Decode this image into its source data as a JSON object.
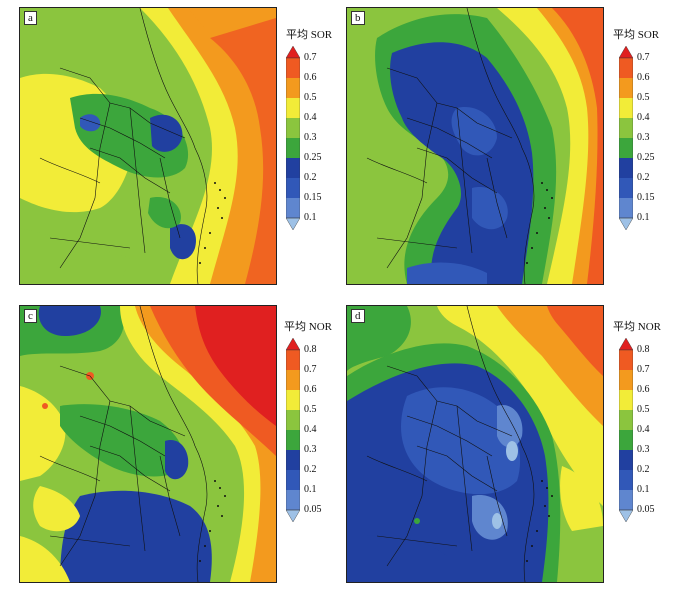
{
  "panels": [
    {
      "letter": "a",
      "colorbar_title": "平均 SOR",
      "ticks": [
        "0.7",
        "0.6",
        "0.5",
        "0.4",
        "0.3",
        "0.25",
        "0.2",
        "0.15",
        "0.1"
      ]
    },
    {
      "letter": "b",
      "colorbar_title": "平均 SOR",
      "ticks": [
        "0.7",
        "0.6",
        "0.5",
        "0.4",
        "0.3",
        "0.25",
        "0.2",
        "0.15",
        "0.1"
      ]
    },
    {
      "letter": "c",
      "colorbar_title": "平均 NOR",
      "ticks": [
        "0.8",
        "0.7",
        "0.6",
        "0.5",
        "0.4",
        "0.3",
        "0.2",
        "0.1",
        "0.05"
      ]
    },
    {
      "letter": "d",
      "colorbar_title": "平均 NOR",
      "ticks": [
        "0.8",
        "0.7",
        "0.6",
        "0.5",
        "0.4",
        "0.3",
        "0.2",
        "0.1",
        "0.05"
      ]
    }
  ],
  "colors": {
    "palette": [
      "#9ec1e6",
      "#5f86cf",
      "#3158b8",
      "#2140a0",
      "#3ca63c",
      "#8bc53e",
      "#f2ec38",
      "#f39a1e",
      "#ef5a22",
      "#e02020"
    ]
  }
}
